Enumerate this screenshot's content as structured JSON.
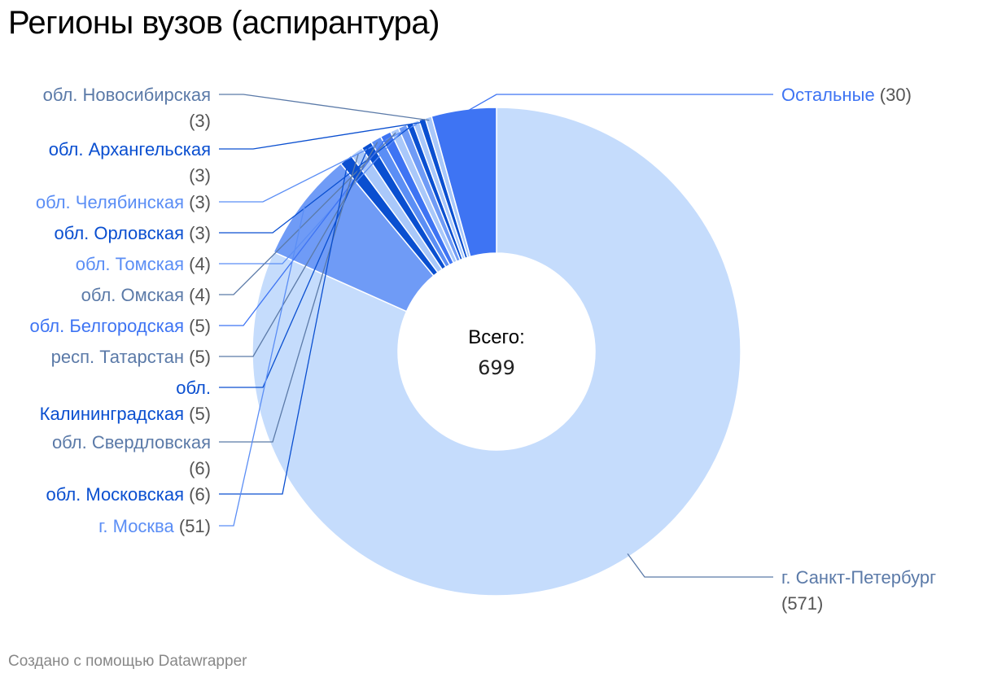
{
  "title": "Регионы вузов (аспирантура)",
  "footer": "Создано с помощью Datawrapper",
  "center": {
    "label": "Всего:",
    "value": "699"
  },
  "colors": {
    "palest": "#c5dcfc",
    "pale": "#a9c8fa",
    "mid": "#6f9bf6",
    "bright": "#3e74f3",
    "dark": "#0a4fd0"
  },
  "chart_data": {
    "type": "pie",
    "variant": "donut",
    "total": 699,
    "slices": [
      {
        "name": "г. Санкт-Петербург",
        "value": 571,
        "color": "#c5dcfc"
      },
      {
        "name": "г. Москва",
        "value": 51,
        "color": "#6f9bf6"
      },
      {
        "name": "обл. Московская",
        "value": 6,
        "color": "#0a4fd0"
      },
      {
        "name": "обл. Свердловская",
        "value": 6,
        "color": "#a9c8fa"
      },
      {
        "name": "обл. Калининградская",
        "value": 5,
        "color": "#0a4fd0"
      },
      {
        "name": "респ. Татарстан",
        "value": 5,
        "color": "#5b8ef5"
      },
      {
        "name": "обл. Белгородская",
        "value": 5,
        "color": "#3e74f3"
      },
      {
        "name": "обл. Омская",
        "value": 4,
        "color": "#a9c8fa"
      },
      {
        "name": "обл. Томская",
        "value": 4,
        "color": "#6f9bf6"
      },
      {
        "name": "обл. Орловская",
        "value": 3,
        "color": "#0a4fd0"
      },
      {
        "name": "обл. Челябинская",
        "value": 3,
        "color": "#a9c8fa"
      },
      {
        "name": "обл. Архангельская",
        "value": 3,
        "color": "#0a4fd0"
      },
      {
        "name": "обл. Новосибирская",
        "value": 3,
        "color": "#a9c8fa"
      },
      {
        "name": "Остальные",
        "value": 30,
        "color": "#3e74f3"
      }
    ],
    "labels": [
      {
        "name": "обл. Новосибирская",
        "count": "(3)",
        "color": "#5b7aa8",
        "side": "left",
        "wrap": true
      },
      {
        "name": "обл. Архангельская",
        "count": "(3)",
        "color": "#0a4fd0",
        "side": "left",
        "wrap": true
      },
      {
        "name": "обл. Челябинская",
        "count": "(3)",
        "color": "#5b8ef5",
        "side": "left",
        "wrap": false
      },
      {
        "name": "обл. Орловская",
        "count": "(3)",
        "color": "#0a4fd0",
        "side": "left",
        "wrap": false
      },
      {
        "name": "обл. Томская",
        "count": "(4)",
        "color": "#5b8ef5",
        "side": "left",
        "wrap": false
      },
      {
        "name": "обл. Омская",
        "count": "(4)",
        "color": "#5b7aa8",
        "side": "left",
        "wrap": false
      },
      {
        "name": "обл. Белгородская",
        "count": "(5)",
        "color": "#3e74f3",
        "side": "left",
        "wrap": false
      },
      {
        "name": "респ. Татарстан",
        "count": "(5)",
        "color": "#5b7aa8",
        "side": "left",
        "wrap": false
      },
      {
        "name": "обл. Калининградская",
        "count": "(5)",
        "color": "#0a4fd0",
        "side": "left",
        "wrap": true,
        "wrapAfterFirstWord": true
      },
      {
        "name": "обл. Свердловская",
        "count": "(6)",
        "color": "#5b7aa8",
        "side": "left",
        "wrap": true
      },
      {
        "name": "обл. Московская",
        "count": "(6)",
        "color": "#0a4fd0",
        "side": "left",
        "wrap": false
      },
      {
        "name": "г. Москва",
        "count": "(51)",
        "color": "#5b8ef5",
        "side": "left",
        "wrap": false
      },
      {
        "name": "Остальные",
        "count": "(30)",
        "color": "#3e74f3",
        "side": "right",
        "wrap": false
      },
      {
        "name": "г. Санкт-Петербург",
        "count": "(571)",
        "color": "#5b7aa8",
        "side": "right",
        "wrap": true
      }
    ]
  }
}
